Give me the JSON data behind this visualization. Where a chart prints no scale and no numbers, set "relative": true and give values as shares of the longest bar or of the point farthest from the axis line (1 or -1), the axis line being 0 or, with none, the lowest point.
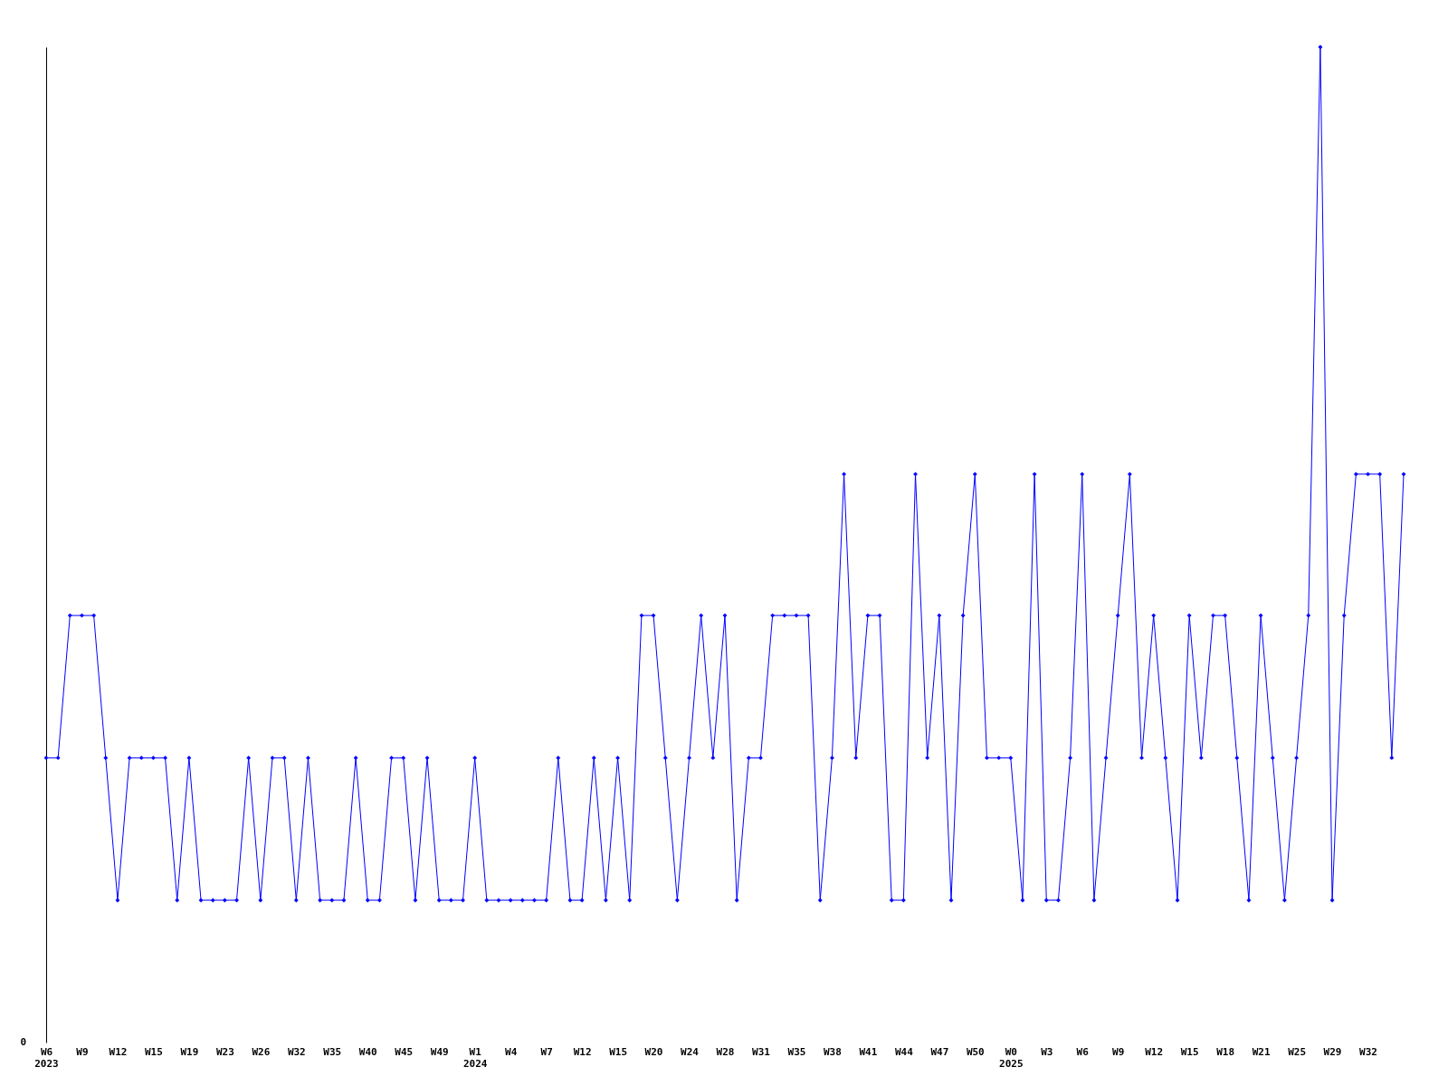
{
  "chart_data": {
    "type": "line",
    "relative": true,
    "marker": "diamond",
    "line_style": "solid",
    "grid": false,
    "categories": [
      "W6\n2023",
      null,
      null,
      "W9",
      null,
      null,
      "W12",
      null,
      null,
      "W15",
      null,
      null,
      "W19",
      null,
      null,
      "W23",
      null,
      null,
      "W26",
      null,
      null,
      "W32",
      null,
      null,
      "W35",
      null,
      null,
      "W40",
      null,
      null,
      "W45",
      null,
      null,
      "W49",
      null,
      null,
      "W1\n2024",
      null,
      null,
      "W4",
      null,
      null,
      "W7",
      null,
      null,
      "W12",
      null,
      null,
      "W15",
      null,
      null,
      "W20",
      null,
      null,
      "W24",
      null,
      null,
      "W28",
      null,
      null,
      "W31",
      null,
      null,
      "W35",
      null,
      null,
      "W38",
      null,
      null,
      "W41",
      null,
      null,
      "W44",
      null,
      null,
      "W47",
      null,
      null,
      "W50",
      null,
      null,
      "W0\n2025",
      null,
      null,
      "W3",
      null,
      null,
      "W6",
      null,
      null,
      "W9",
      null,
      null,
      "W12",
      null,
      null,
      "W15",
      null,
      null,
      "W18",
      null,
      null,
      "W21",
      null,
      null,
      "W25",
      null,
      null,
      "W29",
      null,
      null,
      "W32",
      null,
      null,
      null
    ],
    "series": [
      {
        "color": "#0000ff",
        "values": [
          0.286,
          0.286,
          0.429,
          0.429,
          0.429,
          0.286,
          0.143,
          0.286,
          0.286,
          0.286,
          0.286,
          0.143,
          0.286,
          0.143,
          0.143,
          0.143,
          0.143,
          0.286,
          0.143,
          0.286,
          0.286,
          0.143,
          0.286,
          0.143,
          0.143,
          0.143,
          0.286,
          0.143,
          0.143,
          0.286,
          0.286,
          0.143,
          0.286,
          0.143,
          0.143,
          0.143,
          0.286,
          0.143,
          0.143,
          0.143,
          0.143,
          0.143,
          0.143,
          0.286,
          0.143,
          0.143,
          0.286,
          0.143,
          0.286,
          0.143,
          0.429,
          0.429,
          0.286,
          0.143,
          0.286,
          0.429,
          0.286,
          0.429,
          0.143,
          0.286,
          0.286,
          0.429,
          0.429,
          0.429,
          0.429,
          0.143,
          0.286,
          0.571,
          0.286,
          0.429,
          0.429,
          0.143,
          0.143,
          0.571,
          0.286,
          0.429,
          0.143,
          0.429,
          0.571,
          0.286,
          0.286,
          0.286,
          0.143,
          0.571,
          0.143,
          0.143,
          0.286,
          0.571,
          0.143,
          0.286,
          0.429,
          0.571,
          0.286,
          0.429,
          0.286,
          0.143,
          0.429,
          0.286,
          0.429,
          0.429,
          0.286,
          0.143,
          0.429,
          0.286,
          0.143,
          0.286,
          0.429,
          1,
          0.143,
          0.429,
          0.571,
          0.571,
          0.571,
          0.286,
          0.571
        ]
      }
    ],
    "annotations": [
      "0"
    ]
  }
}
